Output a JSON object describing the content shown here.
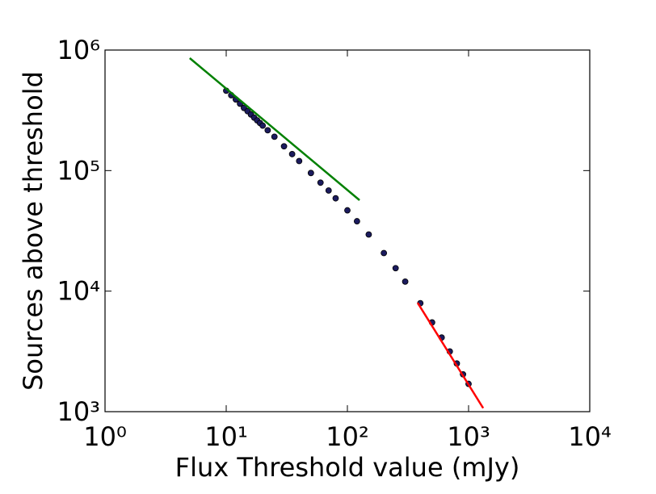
{
  "chart_data": {
    "type": "scatter",
    "xlabel": "Flux Threshold value (mJy)",
    "ylabel": "Sources above threshold",
    "xscale": "log",
    "yscale": "log",
    "xlim": [
      1,
      10000
    ],
    "ylim": [
      1000,
      1000000
    ],
    "xticks": [
      {
        "value": 1,
        "label": "10⁰"
      },
      {
        "value": 10,
        "label": "10¹"
      },
      {
        "value": 100,
        "label": "10²"
      },
      {
        "value": 1000,
        "label": "10³"
      },
      {
        "value": 10000,
        "label": "10⁴"
      }
    ],
    "yticks": [
      {
        "value": 1000,
        "label": "10³"
      },
      {
        "value": 10000,
        "label": "10⁴"
      },
      {
        "value": 100000,
        "label": "10⁵"
      },
      {
        "value": 1000000,
        "label": "10⁶"
      }
    ],
    "grid": false,
    "series": [
      {
        "type": "scatter",
        "color": "#1b1b5e",
        "x": [
          10,
          11,
          12,
          13,
          14,
          15,
          16,
          17,
          18,
          19,
          20,
          22,
          25,
          30,
          35,
          40,
          50,
          60,
          70,
          80,
          100,
          120,
          150,
          200,
          250,
          300,
          400,
          500,
          600,
          700,
          800,
          900,
          1000
        ],
        "values": [
          460000,
          422000,
          389000,
          359000,
          331000,
          311000,
          292000,
          275000,
          261000,
          248000,
          236000,
          216000,
          191000,
          159000,
          137000,
          120000,
          95500,
          79400,
          68400,
          58900,
          46800,
          38000,
          29500,
          20700,
          15500,
          12000,
          7940,
          5500,
          4120,
          3160,
          2510,
          2040,
          1700
        ]
      },
      {
        "type": "line",
        "color": "#008000",
        "x": [
          5,
          126
        ],
        "values": [
          857000,
          56800
        ]
      },
      {
        "type": "line",
        "color": "#ff0000",
        "x": [
          380,
          1320
        ],
        "values": [
          8000,
          1070
        ]
      }
    ]
  }
}
